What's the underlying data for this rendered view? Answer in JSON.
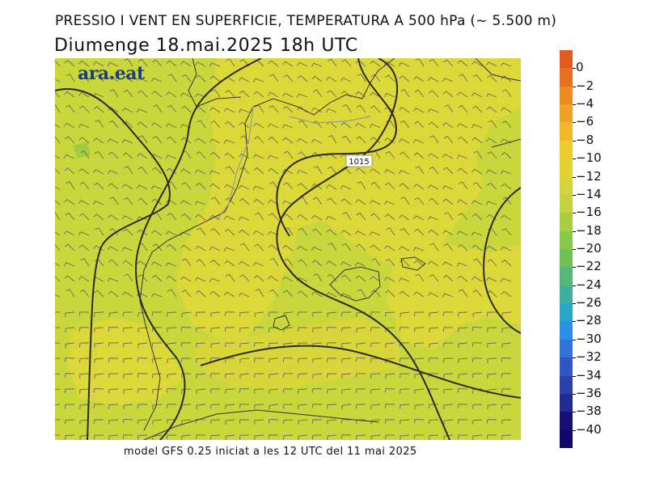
{
  "header": {
    "title": "PRESSIO I VENT EN SUPERFICIE, TEMPERATURA A 500 hPa (~ 5.500 m)",
    "date_line": "Diumenge  18.mai.2025  18h  UTC"
  },
  "logo": {
    "text": "ara.eat"
  },
  "map": {
    "isobar_label": "1015",
    "background_color": "#c9d73c",
    "warm_area_color": "#dcd83a"
  },
  "footer": {
    "text": "model GFS 0.25 iniciat a les 12 UTC del 11 mai 2025"
  },
  "colorbar": {
    "labels": [
      "0",
      "−2",
      "−4",
      "−6",
      "−8",
      "−10",
      "−12",
      "−14",
      "−16",
      "−18",
      "−20",
      "−22",
      "−24",
      "−26",
      "−28",
      "−30",
      "−32",
      "−34",
      "−36",
      "−38",
      "−40"
    ],
    "colors": [
      "#e35a1e",
      "#e8701e",
      "#ed8a22",
      "#f0a226",
      "#f2b82a",
      "#efcb2e",
      "#e3d233",
      "#d4d43a",
      "#c3d33e",
      "#a8cf42",
      "#88c948",
      "#6cc252",
      "#55b878",
      "#3fb0a0",
      "#2aa6c8",
      "#2a90e6",
      "#2f74d8",
      "#3058c4",
      "#2c40ac",
      "#222a92",
      "#160f76",
      "#12066a"
    ]
  }
}
